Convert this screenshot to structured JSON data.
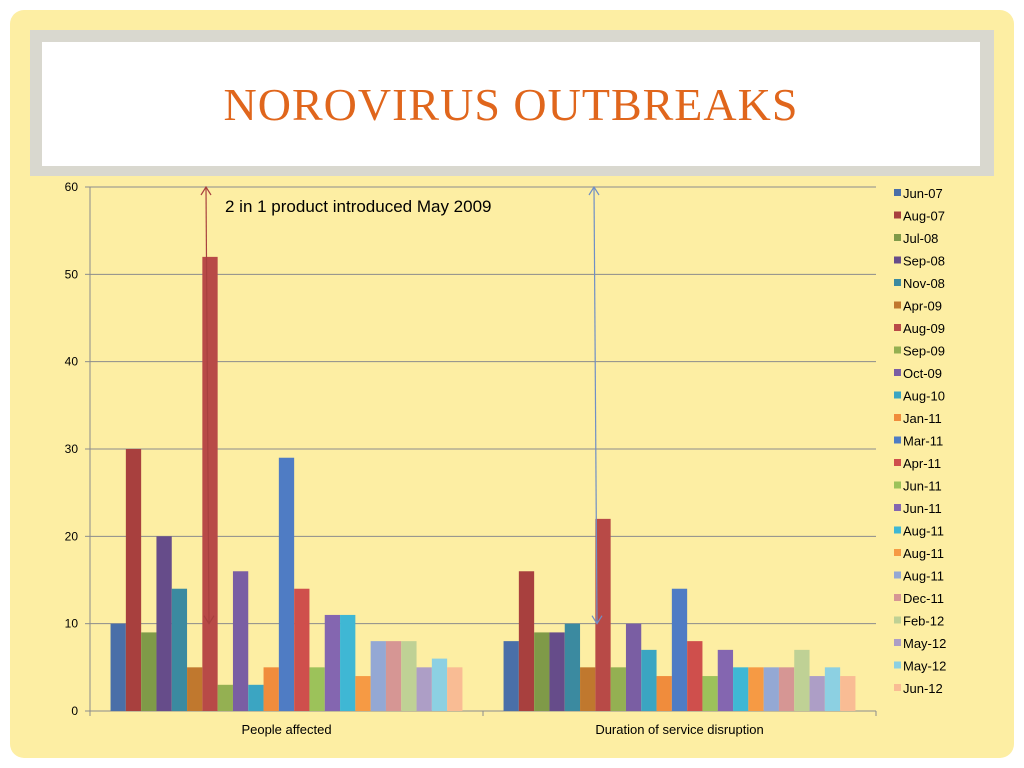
{
  "slide": {
    "title": "NOROVIRUS OUTBREAKS",
    "title_color": "#e0661c",
    "background_color": "#fdeea3"
  },
  "chart_data": {
    "type": "bar",
    "title": "",
    "xlabel": "",
    "ylabel": "",
    "categories": [
      "People affected",
      "Duration of service disruption"
    ],
    "ylim": [
      0,
      60
    ],
    "yticks": [
      0,
      10,
      20,
      30,
      40,
      50,
      60
    ],
    "grid": true,
    "legend_position": "right",
    "annotation": "2 in 1 product introduced May 2009",
    "series": [
      {
        "name": "Jun-07",
        "color": "#4a6fa8",
        "values": [
          10,
          8
        ]
      },
      {
        "name": "Aug-07",
        "color": "#a8403e",
        "values": [
          30,
          16
        ]
      },
      {
        "name": "Jul-08",
        "color": "#7f9a48",
        "values": [
          9,
          9
        ]
      },
      {
        "name": "Sep-08",
        "color": "#664c8a",
        "values": [
          20,
          9
        ]
      },
      {
        "name": "Nov-08",
        "color": "#3b8aa0",
        "values": [
          14,
          10
        ]
      },
      {
        "name": "Apr-09",
        "color": "#c0782e",
        "values": [
          5,
          5
        ]
      },
      {
        "name": "Aug-09",
        "color": "#b84a47",
        "values": [
          52,
          22
        ]
      },
      {
        "name": "Sep-09",
        "color": "#94b052",
        "values": [
          3,
          5
        ]
      },
      {
        "name": "Oct-09",
        "color": "#7a5ea3",
        "values": [
          16,
          10
        ]
      },
      {
        "name": "Aug-10",
        "color": "#3ba5c2",
        "values": [
          3,
          7
        ]
      },
      {
        "name": "Jan-11",
        "color": "#f08c3c",
        "values": [
          5,
          4
        ]
      },
      {
        "name": "Mar-11",
        "color": "#4f7cc4",
        "values": [
          29,
          14
        ]
      },
      {
        "name": "Apr-11",
        "color": "#cf4f4c",
        "values": [
          14,
          8
        ]
      },
      {
        "name": "Jun-11",
        "color": "#9cc25a",
        "values": [
          5,
          4
        ]
      },
      {
        "name": "Jun-11",
        "color": "#8466b0",
        "values": [
          11,
          7
        ]
      },
      {
        "name": "Aug-11",
        "color": "#3fb7d4",
        "values": [
          11,
          5
        ]
      },
      {
        "name": "Aug-11",
        "color": "#f69a44",
        "values": [
          4,
          5
        ]
      },
      {
        "name": "Aug-11",
        "color": "#94a8d4",
        "values": [
          8,
          5
        ]
      },
      {
        "name": "Dec-11",
        "color": "#d69694",
        "values": [
          8,
          5
        ]
      },
      {
        "name": "Feb-12",
        "color": "#bfd195",
        "values": [
          8,
          7
        ]
      },
      {
        "name": "May-12",
        "color": "#ad9ec6",
        "values": [
          5,
          4
        ]
      },
      {
        "name": "May-12",
        "color": "#8cd0e2",
        "values": [
          6,
          5
        ]
      },
      {
        "name": "Jun-12",
        "color": "#f9bc94",
        "values": [
          5,
          4
        ]
      }
    ],
    "arrows": [
      {
        "color": "#a8403e"
      },
      {
        "color": "#6f8fc6"
      }
    ]
  }
}
